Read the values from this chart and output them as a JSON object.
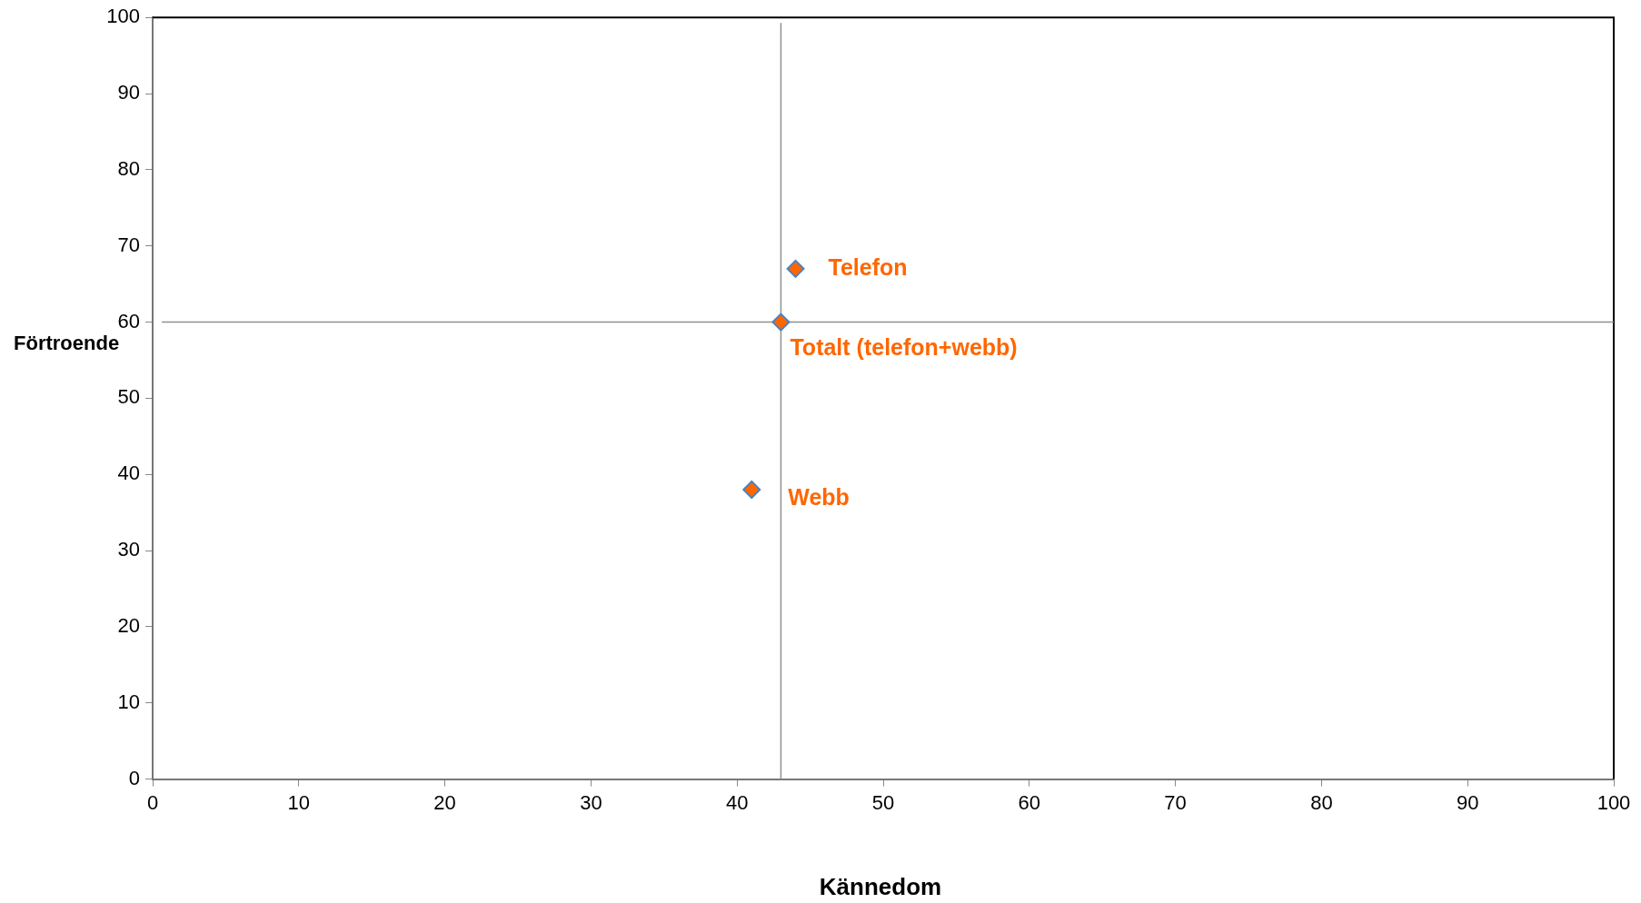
{
  "chart_data": {
    "type": "scatter",
    "xlabel": "Kännedom",
    "ylabel": "Förtroende",
    "series": [
      {
        "color": "#ff6600",
        "x": [
          44,
          43,
          41
        ],
        "values": [
          67,
          60,
          38
        ]
      }
    ],
    "marker": "diamond",
    "grid": false,
    "legend": false,
    "xlim": [
      0,
      100
    ],
    "xticks": [
      0,
      10,
      20,
      30,
      40,
      50,
      60,
      70,
      80,
      90,
      100
    ],
    "ylim": [
      0,
      100
    ],
    "yticks": [
      0,
      10,
      20,
      30,
      40,
      50,
      60,
      70,
      80,
      90,
      100
    ],
    "ref_lines": [
      {
        "axis": "x",
        "value": 43,
        "color": "#8a958a"
      },
      {
        "axis": "y",
        "value": 60,
        "color": "#8a958a"
      }
    ],
    "annotations": [
      {
        "text": "Telefon",
        "x": 44,
        "y": 67
      },
      {
        "text": "Totalt (telefon+webb)",
        "x": 43,
        "y": 60
      },
      {
        "text": "Webb",
        "x": 41,
        "y": 38
      }
    ]
  }
}
